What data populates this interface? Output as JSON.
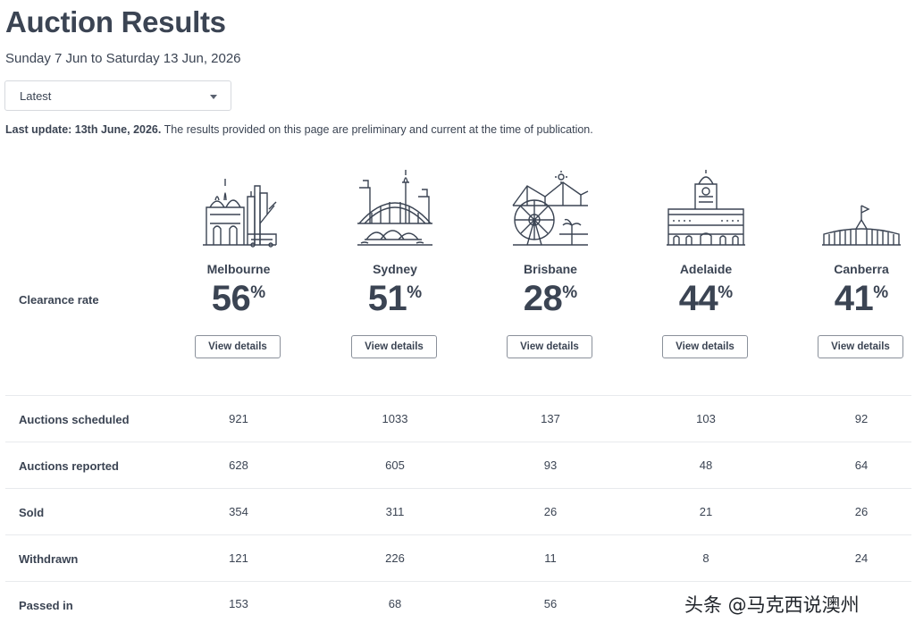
{
  "page": {
    "title": "Auction Results",
    "subtitle": "Sunday 7 Jun to Saturday 13 Jun, 2026",
    "select_value": "Latest",
    "update_bold": "Last update: 13th June, 2026.",
    "update_text": " The results provided on this page are preliminary and current at the time of publication."
  },
  "clearance_label": "Clearance rate",
  "button_label": "View details",
  "percent_symbol": "%",
  "cities": [
    {
      "name": "Melbourne",
      "rate": "56",
      "icon": "melbourne-skyline-icon"
    },
    {
      "name": "Sydney",
      "rate": "51",
      "icon": "sydney-opera-house-icon"
    },
    {
      "name": "Brisbane",
      "rate": "28",
      "icon": "brisbane-ferris-wheel-icon"
    },
    {
      "name": "Adelaide",
      "rate": "44",
      "icon": "adelaide-town-hall-icon"
    },
    {
      "name": "Canberra",
      "rate": "41",
      "icon": "canberra-parliament-icon"
    }
  ],
  "table": {
    "rows": [
      {
        "label": "Auctions scheduled",
        "values": [
          "921",
          "1033",
          "137",
          "103",
          "92"
        ]
      },
      {
        "label": "Auctions reported",
        "values": [
          "628",
          "605",
          "93",
          "48",
          "64"
        ]
      },
      {
        "label": "Sold",
        "values": [
          "354",
          "311",
          "26",
          "21",
          "26"
        ]
      },
      {
        "label": "Withdrawn",
        "values": [
          "121",
          "226",
          "11",
          "8",
          "24"
        ]
      },
      {
        "label": "Passed in",
        "values": [
          "153",
          "68",
          "56",
          "",
          ""
        ]
      }
    ]
  },
  "watermark": "头条 @马克西说澳州",
  "colors": {
    "text": "#3b4453",
    "border": "#d6d9de",
    "divider": "#e8eaed"
  }
}
